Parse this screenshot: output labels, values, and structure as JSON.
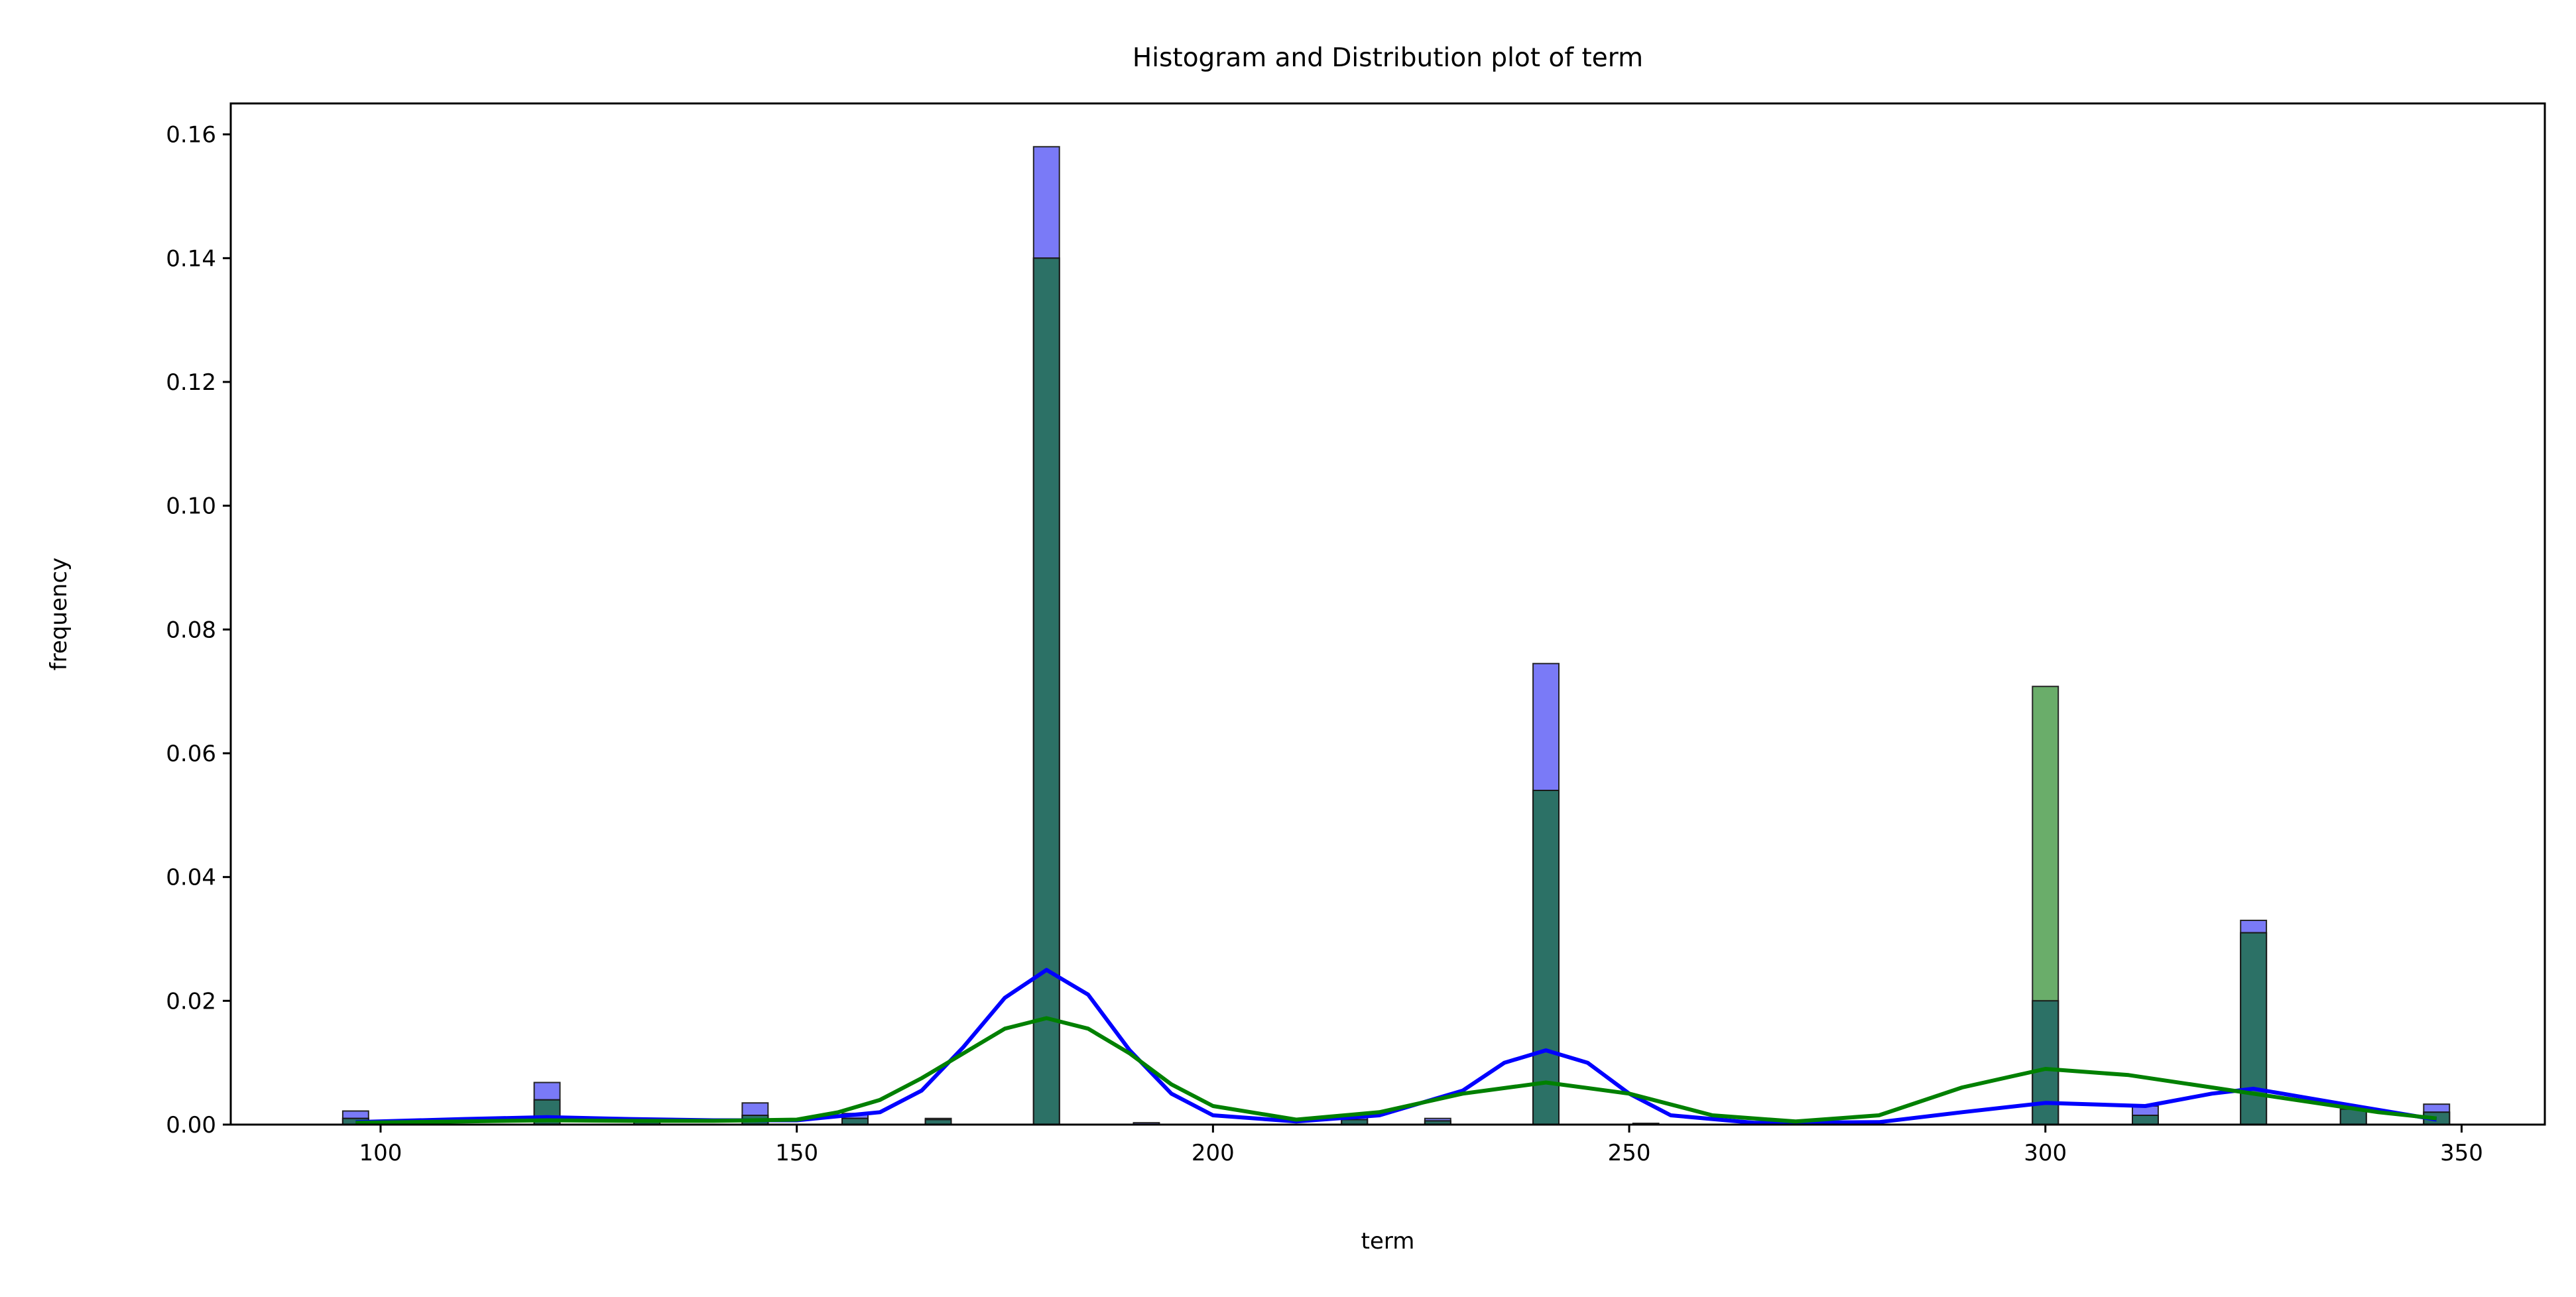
{
  "chart_data": {
    "type": "bar",
    "title": "Histogram and Distribution plot of term",
    "xlabel": "term",
    "ylabel": "frequency",
    "xlim": [
      82,
      360
    ],
    "ylim": [
      0,
      0.165
    ],
    "xticks": [
      100,
      150,
      200,
      250,
      300,
      350
    ],
    "yticks": [
      0.0,
      0.02,
      0.04,
      0.06,
      0.08,
      0.1,
      0.12,
      0.14,
      0.16
    ],
    "xtick_labels": [
      "100",
      "150",
      "200",
      "250",
      "300",
      "350"
    ],
    "ytick_labels": [
      "0.00",
      "0.02",
      "0.04",
      "0.06",
      "0.08",
      "0.10",
      "0.12",
      "0.14",
      "0.16"
    ],
    "grid": false,
    "series": [
      {
        "color": "#0000ff",
        "fill": "#6c6cf5",
        "bin_width": 3.1,
        "bins": [
          [
            97,
            0.0022
          ],
          [
            120,
            0.0068
          ],
          [
            132,
            0.0008
          ],
          [
            145,
            0.0035
          ],
          [
            157,
            0.0018
          ],
          [
            167,
            0.001
          ],
          [
            180,
            0.158
          ],
          [
            192,
            0.0003
          ],
          [
            217,
            0.0014
          ],
          [
            227,
            0.001
          ],
          [
            240,
            0.0745
          ],
          [
            252,
            0.0002
          ],
          [
            300,
            0.02
          ],
          [
            312,
            0.003
          ],
          [
            325,
            0.033
          ],
          [
            337,
            0.0025
          ],
          [
            347,
            0.0033
          ]
        ],
        "kde": [
          [
            97,
            0.0004
          ],
          [
            110,
            0.0009
          ],
          [
            120,
            0.0012
          ],
          [
            130,
            0.0009
          ],
          [
            140,
            0.0007
          ],
          [
            150,
            0.0007
          ],
          [
            160,
            0.002
          ],
          [
            165,
            0.0055
          ],
          [
            170,
            0.0125
          ],
          [
            175,
            0.0205
          ],
          [
            180,
            0.025
          ],
          [
            185,
            0.021
          ],
          [
            190,
            0.012
          ],
          [
            195,
            0.005
          ],
          [
            200,
            0.0015
          ],
          [
            210,
            0.0005
          ],
          [
            220,
            0.0015
          ],
          [
            230,
            0.0055
          ],
          [
            235,
            0.01
          ],
          [
            240,
            0.012
          ],
          [
            245,
            0.01
          ],
          [
            250,
            0.005
          ],
          [
            255,
            0.0015
          ],
          [
            265,
            0.0003
          ],
          [
            280,
            0.0004
          ],
          [
            290,
            0.002
          ],
          [
            300,
            0.0035
          ],
          [
            312,
            0.003
          ],
          [
            320,
            0.005
          ],
          [
            325,
            0.0058
          ],
          [
            335,
            0.0035
          ],
          [
            347,
            0.0008
          ]
        ]
      },
      {
        "color": "#008000",
        "fill": "#5aa35a",
        "bin_width": 3.1,
        "bins": [
          [
            97,
            0.001
          ],
          [
            120,
            0.004
          ],
          [
            132,
            0.0005
          ],
          [
            145,
            0.0015
          ],
          [
            157,
            0.001
          ],
          [
            167,
            0.0008
          ],
          [
            180,
            0.14
          ],
          [
            217,
            0.0008
          ],
          [
            227,
            0.0006
          ],
          [
            240,
            0.054
          ],
          [
            300,
            0.0708
          ],
          [
            312,
            0.0015
          ],
          [
            325,
            0.031
          ],
          [
            337,
            0.0025
          ],
          [
            347,
            0.002
          ]
        ],
        "kde": [
          [
            97,
            0.0003
          ],
          [
            110,
            0.0005
          ],
          [
            120,
            0.0007
          ],
          [
            130,
            0.0006
          ],
          [
            140,
            0.0006
          ],
          [
            150,
            0.0008
          ],
          [
            155,
            0.002
          ],
          [
            160,
            0.004
          ],
          [
            165,
            0.0075
          ],
          [
            170,
            0.0115
          ],
          [
            175,
            0.0155
          ],
          [
            180,
            0.0172
          ],
          [
            185,
            0.0155
          ],
          [
            190,
            0.0115
          ],
          [
            195,
            0.0065
          ],
          [
            200,
            0.003
          ],
          [
            210,
            0.0008
          ],
          [
            220,
            0.002
          ],
          [
            230,
            0.005
          ],
          [
            240,
            0.0068
          ],
          [
            250,
            0.005
          ],
          [
            260,
            0.0015
          ],
          [
            270,
            0.0005
          ],
          [
            280,
            0.0015
          ],
          [
            290,
            0.006
          ],
          [
            300,
            0.009
          ],
          [
            310,
            0.008
          ],
          [
            320,
            0.006
          ],
          [
            330,
            0.004
          ],
          [
            340,
            0.002
          ],
          [
            347,
            0.001
          ]
        ]
      }
    ]
  }
}
